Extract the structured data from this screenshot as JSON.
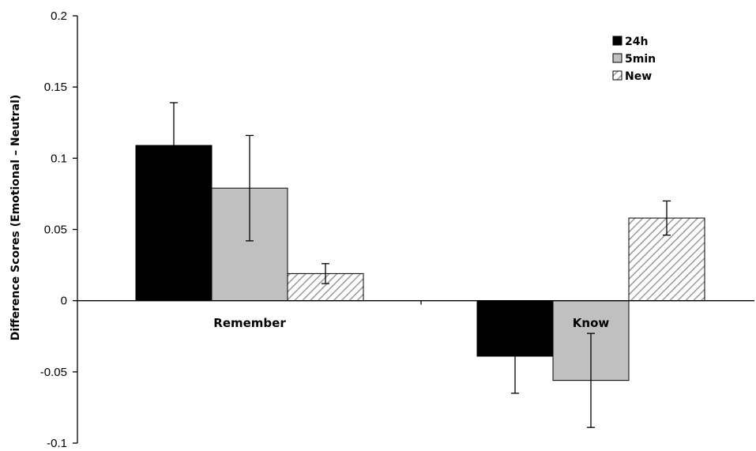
{
  "chart_data": {
    "type": "bar",
    "categories": [
      "Remember",
      "Know"
    ],
    "series": [
      {
        "name": "24h",
        "values": [
          0.109,
          -0.039
        ],
        "errors": [
          0.03,
          0.026
        ],
        "color": "#000000",
        "pattern": "solid"
      },
      {
        "name": "5min",
        "values": [
          0.079,
          -0.056
        ],
        "errors": [
          0.037,
          0.033
        ],
        "color": "#c0c0c0",
        "pattern": "solid"
      },
      {
        "name": "New",
        "values": [
          0.019,
          0.058
        ],
        "errors": [
          0.007,
          0.012
        ],
        "color": "#ffffff",
        "pattern": "diagonal-hatch"
      }
    ],
    "ylabel": "Difference Scores (Emotional – Neutral)",
    "xlabel": "",
    "title": "",
    "ylim": [
      -0.1,
      0.2
    ],
    "yticks": [
      0.2,
      0.15,
      0.1,
      0.05,
      0,
      -0.05,
      -0.1
    ],
    "ytick_labels": [
      "0.2",
      "0.15",
      "0.1",
      "0.05",
      "0",
      "-0.05",
      "-0.1"
    ],
    "grid": false,
    "legend": {
      "placement": "top-right",
      "entries": [
        "24h",
        "5min",
        "New"
      ]
    }
  }
}
